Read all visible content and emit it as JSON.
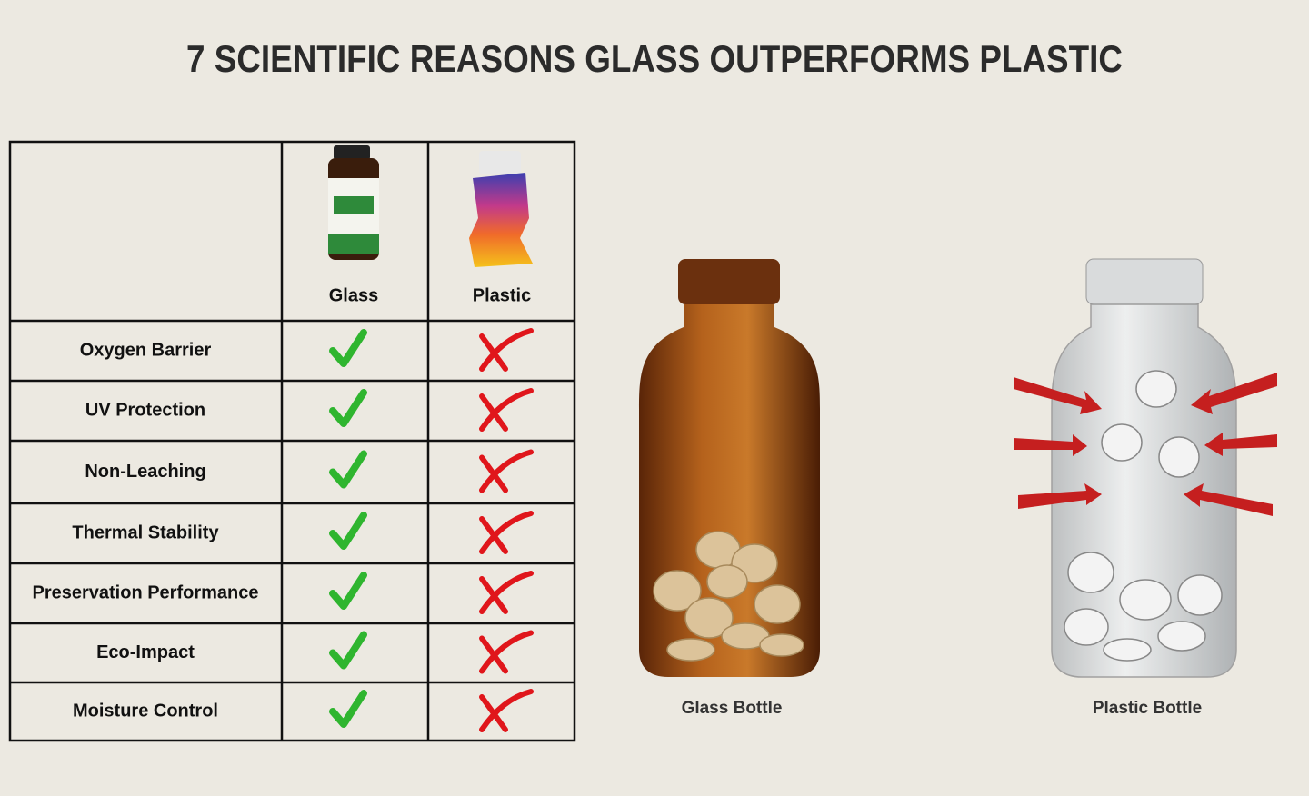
{
  "header": {
    "title": "7 SCIENTIFIC REASONS GLASS OUTPERFORMS PLASTIC"
  },
  "table": {
    "columns": [
      "Glass",
      "Plastic"
    ],
    "rows": [
      "Oxygen Barrier",
      "UV Protection",
      "Non-Leaching",
      "Thermal Stability",
      "Preservation Performance",
      "Eco-Impact",
      "Moisture Control"
    ]
  },
  "illustrations": {
    "glass_caption": "Glass Bottle",
    "plastic_caption": "Plastic Bottle"
  }
}
